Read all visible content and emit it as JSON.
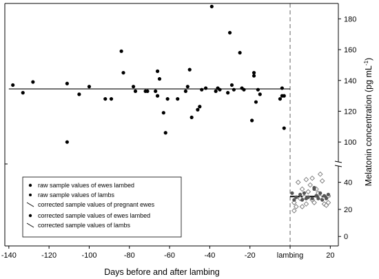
{
  "chart_data": {
    "type": "scatter",
    "xlabel": "Days before and after lambing",
    "ylabel_main": "Melatonin concentration (pg mL",
    "ylabel_sup": "-1",
    "ylabel_close": ")",
    "x_range": [
      -142,
      24
    ],
    "x_ticks": [
      {
        "value": -140,
        "label": "-140"
      },
      {
        "value": -120,
        "label": "-120"
      },
      {
        "value": -100,
        "label": "-100"
      },
      {
        "value": -80,
        "label": "-80"
      },
      {
        "value": -60,
        "label": "-60"
      },
      {
        "value": -40,
        "label": "-40"
      },
      {
        "value": -20,
        "label": "-20"
      },
      {
        "value": 0,
        "label": "lambing"
      },
      {
        "value": 20,
        "label": "20"
      }
    ],
    "y_upper_range": [
      88,
      190
    ],
    "y_upper_ticks": [
      100,
      120,
      140,
      160,
      180
    ],
    "y_lower_range": [
      -7,
      51
    ],
    "y_lower_ticks": [
      0,
      20,
      40
    ],
    "axis_break": true,
    "lambing_line_x": 0,
    "legend_position": "lower-left",
    "series": [
      {
        "name": "raw sample values of ewes lambed",
        "marker": "filled-circle",
        "color": "#000000",
        "points": [
          [
            -138,
            137
          ],
          [
            -133,
            132
          ],
          [
            -128,
            139
          ],
          [
            -111,
            100
          ],
          [
            -111,
            138
          ],
          [
            -105,
            131
          ],
          [
            -100,
            136
          ],
          [
            -92,
            128
          ],
          [
            -89,
            128
          ],
          [
            -84,
            159
          ],
          [
            -83,
            145
          ],
          [
            -78,
            136
          ],
          [
            -77,
            133
          ],
          [
            -72,
            133
          ],
          [
            -71,
            133
          ],
          [
            -67,
            133
          ],
          [
            -66,
            146
          ],
          [
            -66,
            130
          ],
          [
            -65,
            141
          ],
          [
            -63,
            119
          ],
          [
            -62,
            106
          ],
          [
            -61,
            128
          ],
          [
            -56,
            128
          ],
          [
            -52,
            133
          ],
          [
            -51,
            136
          ],
          [
            -50,
            147
          ],
          [
            -49,
            116
          ],
          [
            -46,
            121
          ],
          [
            -45,
            123
          ],
          [
            -44,
            134
          ],
          [
            -42,
            135
          ],
          [
            -39,
            188
          ],
          [
            -37,
            133
          ],
          [
            -36,
            135
          ],
          [
            -35,
            134
          ],
          [
            -31,
            132
          ],
          [
            -30,
            171
          ],
          [
            -29,
            137
          ],
          [
            -28,
            134
          ],
          [
            -25,
            158
          ],
          [
            -24,
            135
          ],
          [
            -23,
            134
          ],
          [
            -19,
            114
          ],
          [
            -18,
            145
          ],
          [
            -18,
            143
          ],
          [
            -17,
            126
          ],
          [
            -16,
            134
          ],
          [
            -15,
            131
          ],
          [
            -5,
            128
          ],
          [
            -4,
            130
          ],
          [
            -4,
            135
          ],
          [
            -3,
            130
          ],
          [
            -3,
            109
          ]
        ]
      },
      {
        "name": "raw sample values of lambs",
        "marker": "open-diamond",
        "color": "#777777",
        "points": [
          [
            2,
            25
          ],
          [
            2,
            19
          ],
          [
            3,
            22
          ],
          [
            4,
            40
          ],
          [
            5,
            28
          ],
          [
            6,
            35
          ],
          [
            6,
            22
          ],
          [
            7,
            29
          ],
          [
            8,
            42
          ],
          [
            8,
            24
          ],
          [
            9,
            33
          ],
          [
            10,
            38
          ],
          [
            11,
            43
          ],
          [
            11,
            27
          ],
          [
            12,
            25
          ],
          [
            13,
            35
          ],
          [
            14,
            32
          ],
          [
            15,
            46
          ],
          [
            15,
            29
          ],
          [
            16,
            41
          ],
          [
            17,
            24
          ],
          [
            18,
            23
          ],
          [
            19,
            30
          ],
          [
            19,
            25
          ]
        ]
      },
      {
        "name": "corrected sample values of pregnant ewes",
        "marker": "line",
        "color": "#000000",
        "points": [
          [
            -140,
            134.5
          ],
          [
            0,
            134.5
          ]
        ]
      },
      {
        "name": "corrected sample values of ewes lambed",
        "marker": "filled-circle-gray",
        "color": "#555555",
        "points": [
          [
            1,
            32
          ],
          [
            2,
            27
          ],
          [
            3,
            29
          ],
          [
            5,
            31
          ],
          [
            6,
            27
          ],
          [
            7,
            32
          ],
          [
            8,
            28
          ],
          [
            9,
            29
          ],
          [
            11,
            28
          ],
          [
            12,
            36
          ],
          [
            12,
            35
          ],
          [
            13,
            30
          ],
          [
            14,
            28
          ],
          [
            15,
            32
          ],
          [
            16,
            27
          ],
          [
            17,
            30
          ],
          [
            18,
            28
          ],
          [
            19,
            31
          ]
        ]
      },
      {
        "name": "corrected sample values of lambs",
        "marker": "line",
        "color": "#000000",
        "points": [
          [
            0,
            29.5
          ],
          [
            20,
            29.5
          ]
        ]
      }
    ]
  }
}
